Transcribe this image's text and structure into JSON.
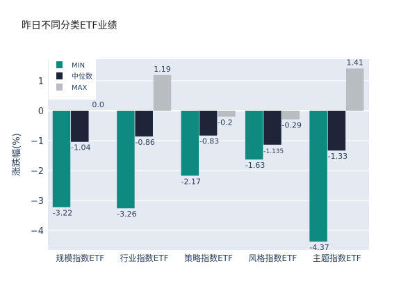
{
  "chart_data": {
    "type": "bar",
    "title": "昨日不同分类ETF业绩",
    "xlabel": "",
    "ylabel": "涨跌幅(%)",
    "ylim": [
      -4.65,
      1.72
    ],
    "yticks": [
      1,
      0,
      -1,
      -2,
      -3,
      -4
    ],
    "grid": true,
    "legend_position": "top-left",
    "categories": [
      "规模指数ETF",
      "行业指数ETF",
      "策略指数ETF",
      "风格指数ETF",
      "主题指数ETF"
    ],
    "series": [
      {
        "name": "MIN",
        "color": "#0e8a80",
        "values": [
          -3.22,
          -3.26,
          -2.17,
          -1.63,
          -4.37
        ],
        "labels": [
          "-3.22",
          "-3.26",
          "-2.17",
          "-1.63",
          "-4.37"
        ]
      },
      {
        "name": "中位数",
        "color": "#1e2538",
        "values": [
          -1.04,
          -0.86,
          -0.83,
          -1.135,
          -1.33
        ],
        "labels": [
          "-1.04",
          "-0.86",
          "-0.83",
          "-1.135",
          "-1.33"
        ]
      },
      {
        "name": "MAX",
        "color": "#b9bcc1",
        "values": [
          0.0,
          1.19,
          -0.2,
          -0.29,
          1.41
        ],
        "labels": [
          "0.0",
          "1.19",
          "-0.2",
          "-0.29",
          "1.41"
        ]
      }
    ]
  }
}
